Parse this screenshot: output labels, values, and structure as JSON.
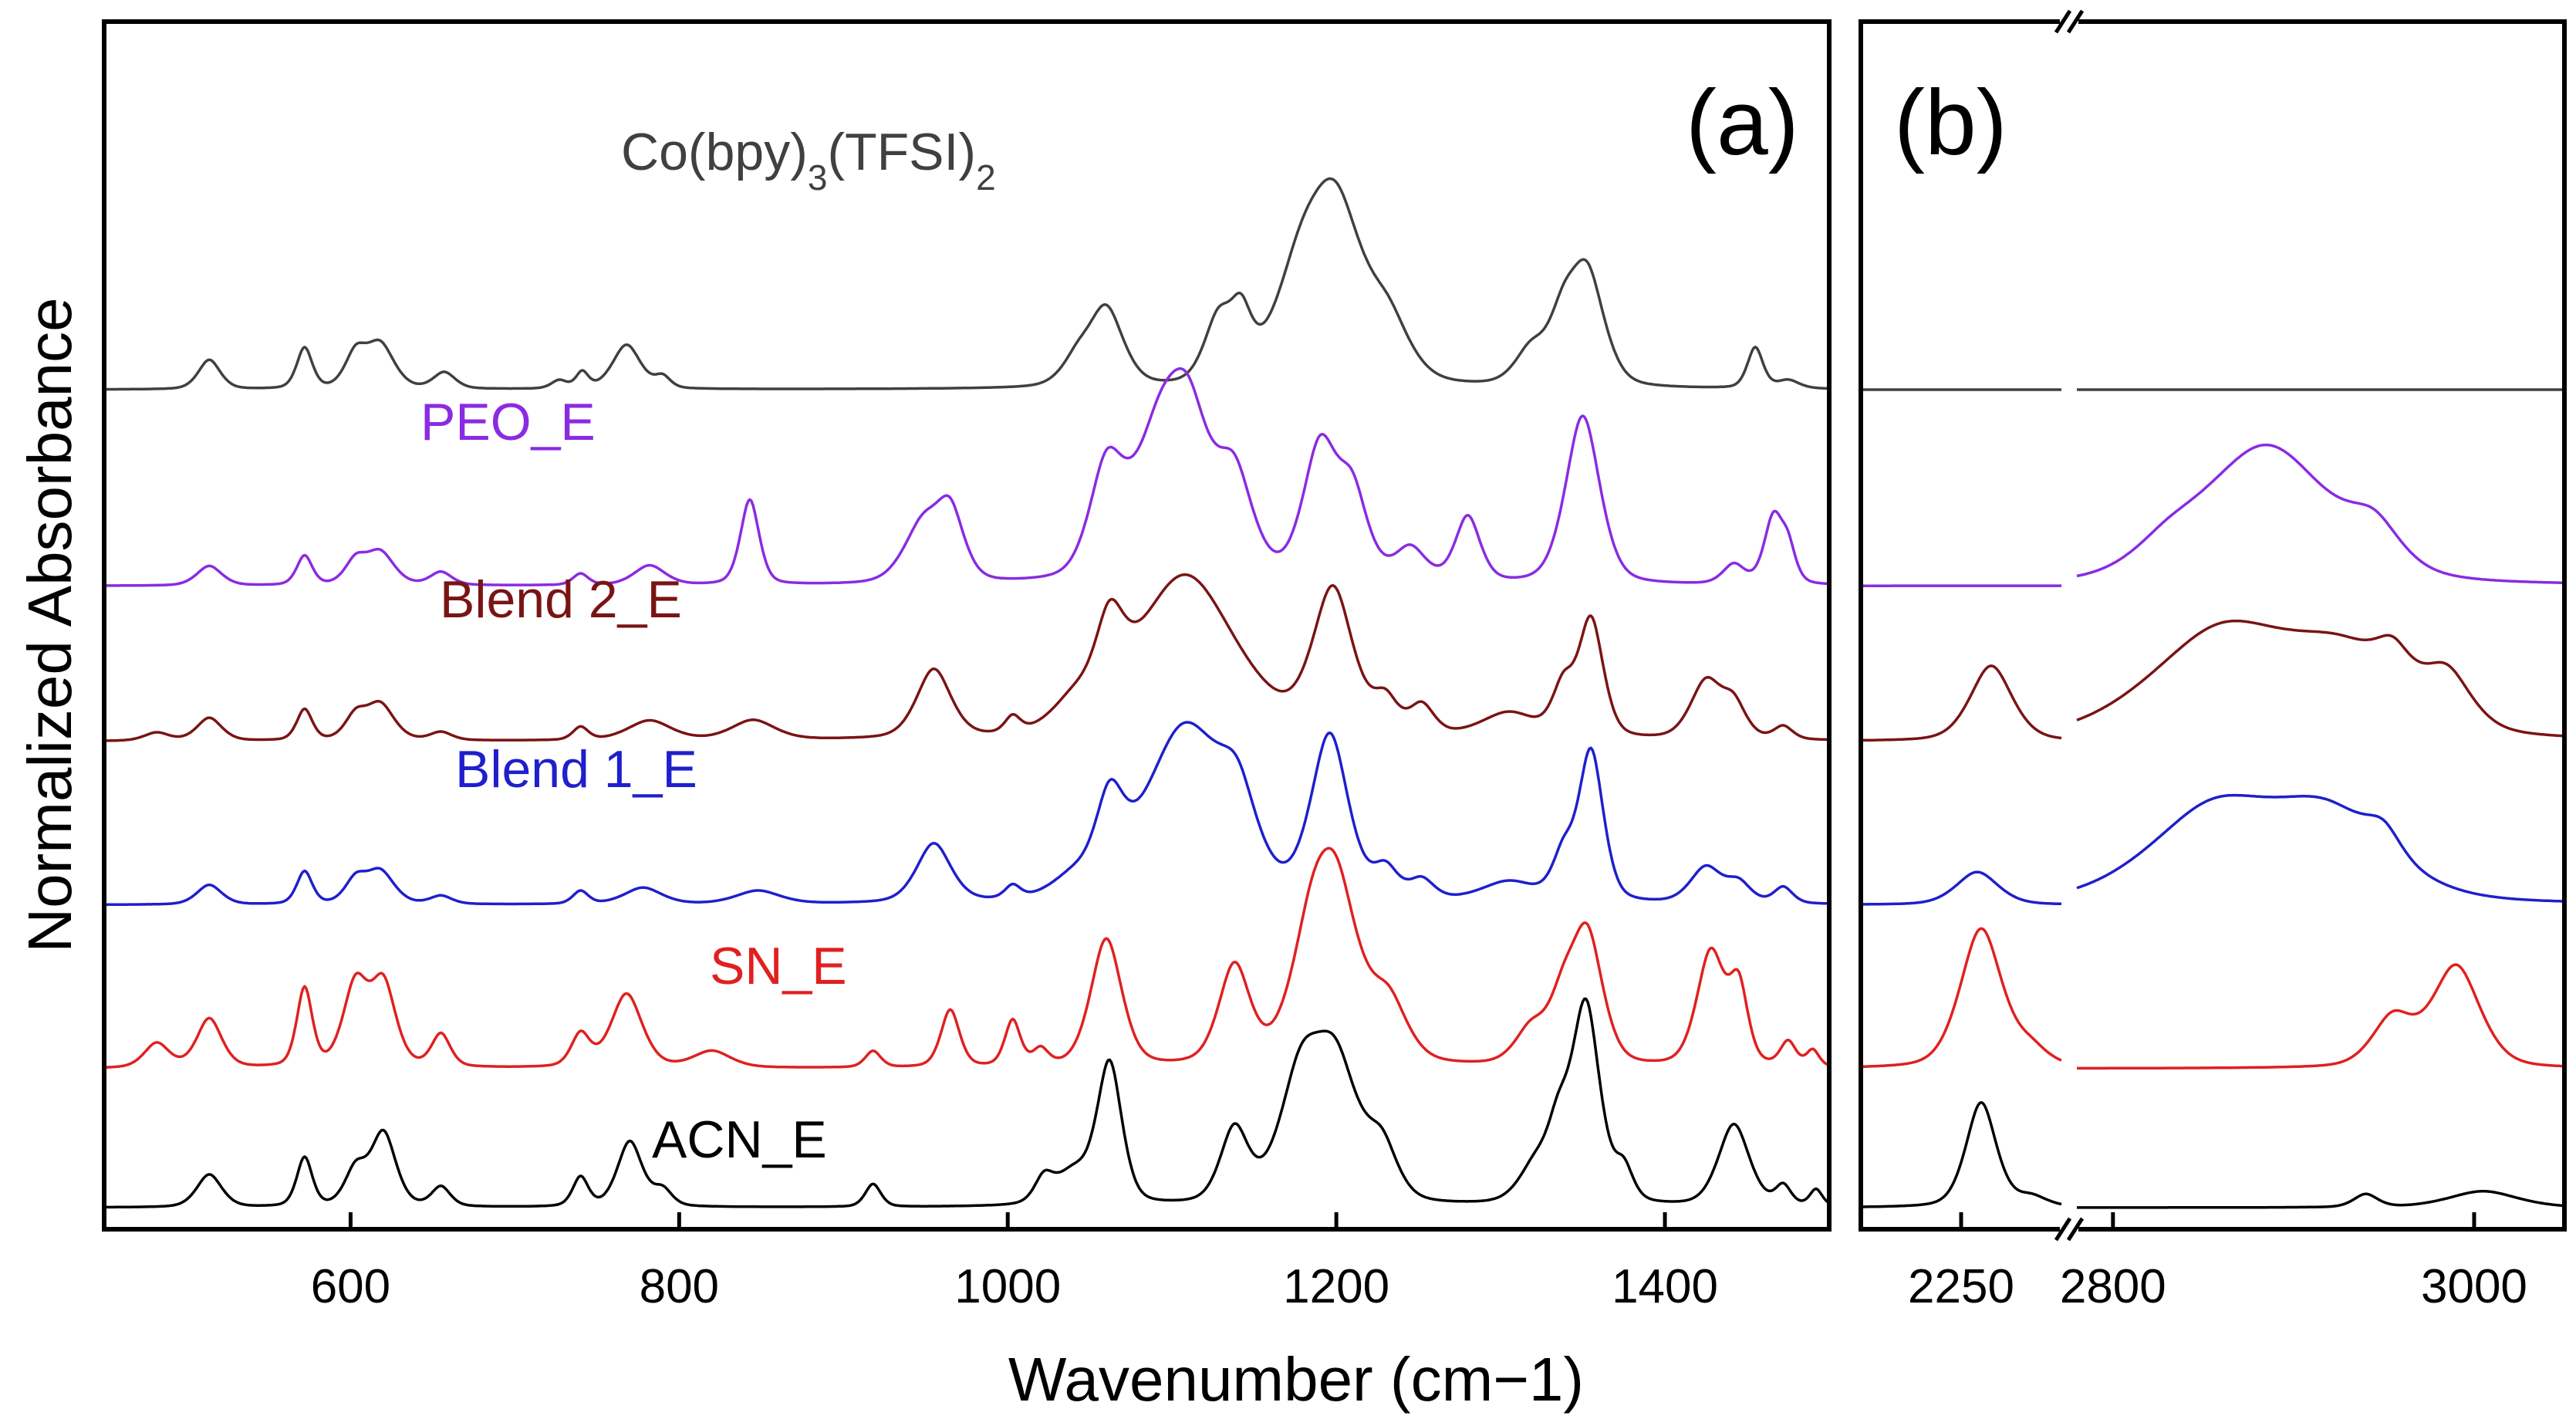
{
  "chart_data": {
    "type": "line",
    "ylabel": "Normalized Absorbance",
    "xlabel": "Wavenumber (cm−1)",
    "panels": [
      {
        "label": "(a)",
        "xlim": [
          450,
          1500
        ],
        "ticks": [
          600,
          800,
          1000,
          1200,
          1400
        ]
      },
      {
        "label": "(b)",
        "segments": [
          {
            "xlim": [
              2200,
              2300
            ],
            "ticks": [
              2250
            ]
          },
          {
            "xlim": [
              2780,
              3050
            ],
            "ticks": [
              2800,
              3000
            ]
          }
        ]
      }
    ],
    "series": [
      {
        "name": "Co(bpy)3(TFSI)2",
        "color": "#404040",
        "label": {
          "main": "Co(bpy)",
          "sub1": "3",
          "mid": "(TFSI)",
          "sub2": "2"
        },
        "offset": 5.0,
        "peaks_a": [
          [
            514,
            0.18,
            7
          ],
          [
            572,
            0.25,
            5
          ],
          [
            603,
            0.2,
            7
          ],
          [
            618,
            0.27,
            9
          ],
          [
            657,
            0.1,
            7
          ],
          [
            727,
            0.05,
            5
          ],
          [
            741,
            0.1,
            4
          ],
          [
            768,
            0.27,
            9
          ],
          [
            790,
            0.07,
            5
          ],
          [
            1042,
            0.15,
            10
          ],
          [
            1060,
            0.47,
            11
          ],
          [
            1128,
            0.38,
            9
          ],
          [
            1142,
            0.34,
            7
          ],
          [
            1178,
            0.55,
            18
          ],
          [
            1200,
            0.98,
            18
          ],
          [
            1232,
            0.32,
            14
          ],
          [
            1318,
            0.2,
            10
          ],
          [
            1338,
            0.35,
            10
          ],
          [
            1353,
            0.65,
            11
          ],
          [
            1455,
            0.25,
            5
          ],
          [
            1475,
            0.05,
            7
          ]
        ],
        "peaks_b": []
      },
      {
        "name": "PEO_E",
        "color": "#8a2be2",
        "offset": 3.8,
        "peaks_a": [
          [
            514,
            0.12,
            8
          ],
          [
            572,
            0.18,
            5
          ],
          [
            603,
            0.14,
            7
          ],
          [
            618,
            0.2,
            9
          ],
          [
            655,
            0.08,
            7
          ],
          [
            740,
            0.07,
            5
          ],
          [
            782,
            0.12,
            10
          ],
          [
            843,
            0.52,
            6
          ],
          [
            948,
            0.35,
            12
          ],
          [
            965,
            0.4,
            9
          ],
          [
            1060,
            0.62,
            11
          ],
          [
            1092,
            0.8,
            18
          ],
          [
            1110,
            0.75,
            14
          ],
          [
            1138,
            0.6,
            12
          ],
          [
            1190,
            0.8,
            11
          ],
          [
            1210,
            0.5,
            10
          ],
          [
            1245,
            0.2,
            10
          ],
          [
            1280,
            0.4,
            8
          ],
          [
            1350,
            1.03,
            11
          ],
          [
            1442,
            0.12,
            7
          ],
          [
            1466,
            0.4,
            6
          ],
          [
            1475,
            0.2,
            5
          ]
        ],
        "peaks_b": [
          [
            2830,
            0.12,
            20
          ],
          [
            2885,
            0.85,
            38
          ],
          [
            2945,
            0.22,
            15
          ]
        ]
      },
      {
        "name": "Blend 2_E",
        "color": "#7a1414",
        "offset": 2.85,
        "peaks_a": [
          [
            482,
            0.05,
            8
          ],
          [
            514,
            0.14,
            8
          ],
          [
            572,
            0.19,
            5
          ],
          [
            603,
            0.14,
            7
          ],
          [
            618,
            0.22,
            9
          ],
          [
            655,
            0.05,
            7
          ],
          [
            740,
            0.08,
            5
          ],
          [
            782,
            0.12,
            14
          ],
          [
            845,
            0.12,
            14
          ],
          [
            955,
            0.42,
            11
          ],
          [
            1003,
            0.1,
            5
          ],
          [
            1040,
            0.15,
            14
          ],
          [
            1062,
            0.45,
            9
          ],
          [
            1108,
            1.0,
            33
          ],
          [
            1198,
            0.88,
            13
          ],
          [
            1230,
            0.2,
            8
          ],
          [
            1252,
            0.18,
            8
          ],
          [
            1305,
            0.15,
            18
          ],
          [
            1338,
            0.28,
            7
          ],
          [
            1355,
            0.72,
            8
          ],
          [
            1425,
            0.35,
            10
          ],
          [
            1442,
            0.2,
            8
          ],
          [
            1472,
            0.08,
            6
          ]
        ],
        "peaks_b": [
          [
            2265,
            0.46,
            11
          ],
          [
            2860,
            0.65,
            42
          ],
          [
            2930,
            0.45,
            35
          ],
          [
            2955,
            0.2,
            10
          ],
          [
            2985,
            0.3,
            14
          ]
        ]
      },
      {
        "name": "Blend 1_E",
        "color": "#1f1fcc",
        "offset": 1.85,
        "peaks_a": [
          [
            514,
            0.12,
            8
          ],
          [
            572,
            0.2,
            5
          ],
          [
            603,
            0.14,
            7
          ],
          [
            618,
            0.2,
            9
          ],
          [
            655,
            0.05,
            7
          ],
          [
            740,
            0.08,
            5
          ],
          [
            778,
            0.1,
            12
          ],
          [
            848,
            0.08,
            14
          ],
          [
            955,
            0.36,
            11
          ],
          [
            1003,
            0.08,
            5
          ],
          [
            1040,
            0.12,
            14
          ],
          [
            1062,
            0.48,
            9
          ],
          [
            1108,
            1.07,
            26
          ],
          [
            1140,
            0.4,
            12
          ],
          [
            1196,
            1.0,
            12
          ],
          [
            1230,
            0.18,
            8
          ],
          [
            1252,
            0.12,
            8
          ],
          [
            1305,
            0.12,
            18
          ],
          [
            1338,
            0.25,
            7
          ],
          [
            1355,
            0.92,
            8
          ],
          [
            1425,
            0.22,
            10
          ],
          [
            1445,
            0.12,
            8
          ],
          [
            1472,
            0.1,
            6
          ]
        ],
        "peaks_b": [
          [
            2258,
            0.2,
            11
          ],
          [
            2855,
            0.55,
            38
          ],
          [
            2920,
            0.5,
            35
          ],
          [
            2950,
            0.15,
            10
          ]
        ]
      },
      {
        "name": "SN_E",
        "color": "#e02020",
        "offset": 0.85,
        "peaks_a": [
          [
            482,
            0.15,
            8
          ],
          [
            514,
            0.3,
            8
          ],
          [
            572,
            0.48,
            5
          ],
          [
            603,
            0.5,
            8
          ],
          [
            620,
            0.5,
            8
          ],
          [
            655,
            0.2,
            6
          ],
          [
            740,
            0.2,
            6
          ],
          [
            768,
            0.45,
            10
          ],
          [
            820,
            0.1,
            12
          ],
          [
            918,
            0.1,
            5
          ],
          [
            965,
            0.35,
            6
          ],
          [
            1003,
            0.28,
            5
          ],
          [
            1020,
            0.1,
            5
          ],
          [
            1060,
            0.78,
            10
          ],
          [
            1138,
            0.6,
            10
          ],
          [
            1185,
            0.6,
            14
          ],
          [
            1200,
            0.95,
            15
          ],
          [
            1232,
            0.35,
            12
          ],
          [
            1318,
            0.2,
            10
          ],
          [
            1338,
            0.35,
            10
          ],
          [
            1353,
            0.75,
            10
          ],
          [
            1428,
            0.7,
            9
          ],
          [
            1445,
            0.45,
            6
          ],
          [
            1475,
            0.15,
            5
          ],
          [
            1490,
            0.1,
            4
          ]
        ],
        "peaks_b": [
          [
            2260,
            0.85,
            11
          ],
          [
            2285,
            0.1,
            9
          ],
          [
            2955,
            0.3,
            12
          ],
          [
            2990,
            0.62,
            14
          ]
        ]
      },
      {
        "name": "ACN_E",
        "color": "#000000",
        "offset": 0.0,
        "peaks_a": [
          [
            514,
            0.2,
            8
          ],
          [
            572,
            0.3,
            5
          ],
          [
            603,
            0.22,
            7
          ],
          [
            620,
            0.45,
            8
          ],
          [
            655,
            0.12,
            6
          ],
          [
            740,
            0.18,
            5
          ],
          [
            770,
            0.4,
            8
          ],
          [
            790,
            0.1,
            6
          ],
          [
            918,
            0.14,
            5
          ],
          [
            1022,
            0.14,
            6
          ],
          [
            1040,
            0.2,
            12
          ],
          [
            1062,
            0.85,
            8
          ],
          [
            1138,
            0.45,
            9
          ],
          [
            1178,
            0.7,
            14
          ],
          [
            1200,
            0.8,
            15
          ],
          [
            1228,
            0.3,
            10
          ],
          [
            1320,
            0.2,
            10
          ],
          [
            1335,
            0.4,
            8
          ],
          [
            1352,
            1.2,
            9
          ],
          [
            1375,
            0.2,
            6
          ],
          [
            1442,
            0.5,
            10
          ],
          [
            1472,
            0.12,
            5
          ],
          [
            1492,
            0.1,
            4
          ]
        ],
        "peaks_b": [
          [
            2260,
            0.64,
            8
          ],
          [
            2285,
            0.06,
            8
          ],
          [
            2940,
            0.08,
            7
          ],
          [
            3005,
            0.1,
            20
          ]
        ]
      }
    ]
  }
}
